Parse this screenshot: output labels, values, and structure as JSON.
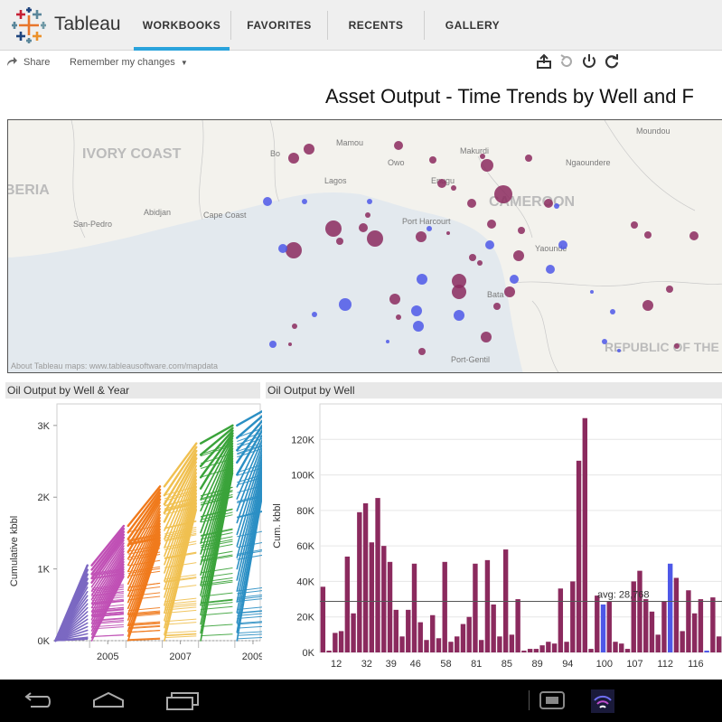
{
  "app": {
    "brand": "Tableau"
  },
  "nav": {
    "tabs": [
      {
        "label": "WORKBOOKS",
        "active": true
      },
      {
        "label": "FAVORITES",
        "active": false
      },
      {
        "label": "RECENTS",
        "active": false
      },
      {
        "label": "GALLERY",
        "active": false
      }
    ]
  },
  "toolbar": {
    "share": "Share",
    "remember": "Remember my changes"
  },
  "dashboard": {
    "title": "Asset Output - Time Trends by Well and F"
  },
  "map": {
    "credit": "About Tableau maps: www.tableausoftware.com/mapdata",
    "labels": [
      "IVORY COAST",
      "BERIA",
      "CAMEROON",
      "REPUBLIC OF THE CONGO",
      "Makurdi",
      "Mamou",
      "Bo",
      "Owo",
      "Lagos",
      "Enugu",
      "Ngaoundere",
      "Abidjan",
      "Cape Coast",
      "San-Pedro",
      "Port Harcourt",
      "Yaounde",
      "Moundou",
      "Port-Gentil",
      "Bata"
    ],
    "colors": {
      "purple": "#8b2a5e",
      "blue": "#4e58e8",
      "water": "#e3e9ee",
      "land": "#f3f2ed"
    }
  },
  "left_panel": {
    "title": "Oil Output by Well & Year",
    "ylabel": "Cumulative kbbl"
  },
  "right_panel": {
    "title": "Oil Output by Well",
    "ylabel": "Cum. kbbl",
    "avg_label": "avg: 28,768"
  },
  "chart_data": [
    {
      "type": "line",
      "title": "Oil Output by Well & Year",
      "ylabel": "Cumulative kbbl",
      "xlabel": "",
      "x_ticks": [
        "2005",
        "2007",
        "2009"
      ],
      "y_ticks": [
        "0K",
        "1K",
        "2K",
        "3K"
      ],
      "ylim": [
        0,
        3300
      ],
      "xlim": [
        2004.1,
        2009.7
      ],
      "series": [
        {
          "year": 2004,
          "color": "#7b68c2",
          "start_max": 0,
          "end_max": 1050
        },
        {
          "year": 2005,
          "color": "#c050b5",
          "start_max": 1050,
          "end_max": 1600
        },
        {
          "year": 2006,
          "color": "#f07a1c",
          "start_max": 1600,
          "end_max": 2150
        },
        {
          "year": 2007,
          "color": "#f0c050",
          "start_max": 2150,
          "end_max": 2750
        },
        {
          "year": 2008,
          "color": "#3aa33a",
          "start_max": 2750,
          "end_max": 3000
        },
        {
          "year": 2009,
          "color": "#2b8fc4",
          "start_max": 3000,
          "end_max": 3250
        }
      ]
    },
    {
      "type": "bar",
      "title": "Oil Output by Well",
      "ylabel": "Cum. kbbl",
      "x_ticks": [
        "12",
        "32",
        "39",
        "46",
        "58",
        "81",
        "85",
        "89",
        "94",
        "100",
        "107",
        "112",
        "116"
      ],
      "y_ticks": [
        "0K",
        "20K",
        "40K",
        "60K",
        "80K",
        "100K",
        "120K"
      ],
      "ylim": [
        0,
        140000
      ],
      "reference_line": 28768,
      "values": [
        37000,
        1000,
        11000,
        12000,
        54000,
        22000,
        79000,
        84000,
        62000,
        87000,
        60000,
        51000,
        24000,
        9000,
        24000,
        50000,
        17000,
        7000,
        21000,
        8000,
        51000,
        6000,
        9000,
        16000,
        20000,
        50000,
        7000,
        52000,
        27000,
        9000,
        58000,
        10000,
        30000,
        1000,
        2000,
        2000,
        4000,
        6000,
        5000,
        36000,
        6000,
        40000,
        108000,
        132000,
        2000,
        32000,
        27000,
        29000,
        6000,
        5000,
        2000,
        40000,
        46000,
        30000,
        23000,
        10000,
        29000,
        50000,
        42000,
        12000,
        35000,
        22000,
        30000,
        1000,
        31000,
        9000
      ],
      "highlighted_indices": [
        46,
        57,
        63
      ]
    }
  ],
  "system": {
    "back": "back",
    "home": "home",
    "recents": "recents"
  }
}
